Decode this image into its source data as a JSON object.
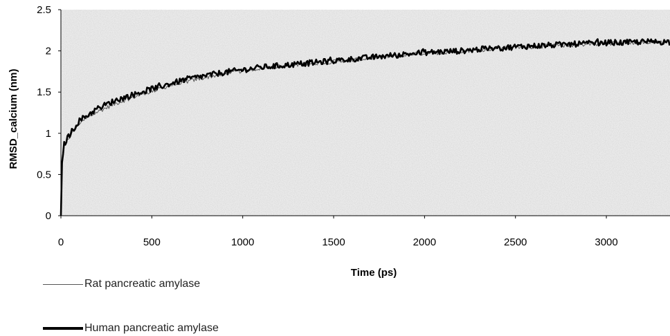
{
  "chart_data": {
    "type": "line",
    "xlabel": "Time (ps)",
    "ylabel": "RMSD_calcium (nm)",
    "xlim": [
      0,
      3350
    ],
    "ylim": [
      0,
      2.5
    ],
    "x_ticks": [
      "0",
      "500",
      "1000",
      "1500",
      "2000",
      "2500",
      "3000"
    ],
    "y_ticks": [
      "0",
      "0.5",
      "1",
      "1.5",
      "2",
      "2.5"
    ],
    "grid": false,
    "background": "noisy light-gray texture",
    "legend_position": "bottom-left",
    "series": [
      {
        "name": "Rat pancreatic amylase",
        "color": "#555555",
        "style": "thin",
        "points": [
          [
            0,
            0
          ],
          [
            5,
            0.55
          ],
          [
            15,
            0.82
          ],
          [
            40,
            0.93
          ],
          [
            100,
            1.12
          ],
          [
            200,
            1.26
          ],
          [
            300,
            1.36
          ],
          [
            400,
            1.44
          ],
          [
            500,
            1.51
          ],
          [
            600,
            1.58
          ],
          [
            700,
            1.63
          ],
          [
            800,
            1.68
          ],
          [
            900,
            1.72
          ],
          [
            1000,
            1.76
          ],
          [
            1100,
            1.79
          ],
          [
            1200,
            1.81
          ],
          [
            1300,
            1.83
          ],
          [
            1400,
            1.85
          ],
          [
            1500,
            1.87
          ],
          [
            1600,
            1.89
          ],
          [
            1700,
            1.91
          ],
          [
            1800,
            1.93
          ],
          [
            1900,
            1.95
          ],
          [
            2000,
            1.97
          ],
          [
            2100,
            1.98
          ],
          [
            2200,
            2.0
          ],
          [
            2300,
            2.01
          ],
          [
            2400,
            2.03
          ],
          [
            2500,
            2.04
          ],
          [
            2600,
            2.05
          ],
          [
            2700,
            2.06
          ],
          [
            2800,
            2.07
          ],
          [
            2900,
            2.08
          ],
          [
            3000,
            2.09
          ],
          [
            3100,
            2.1
          ],
          [
            3200,
            2.1
          ],
          [
            3350,
            2.1
          ]
        ]
      },
      {
        "name": "Human pancreatic amylase",
        "color": "#000000",
        "style": "thick",
        "points": [
          [
            0,
            0
          ],
          [
            5,
            0.62
          ],
          [
            15,
            0.85
          ],
          [
            40,
            0.96
          ],
          [
            100,
            1.15
          ],
          [
            200,
            1.3
          ],
          [
            300,
            1.4
          ],
          [
            400,
            1.47
          ],
          [
            500,
            1.54
          ],
          [
            600,
            1.6
          ],
          [
            700,
            1.66
          ],
          [
            800,
            1.7
          ],
          [
            900,
            1.74
          ],
          [
            1000,
            1.77
          ],
          [
            1100,
            1.8
          ],
          [
            1200,
            1.82
          ],
          [
            1300,
            1.84
          ],
          [
            1400,
            1.86
          ],
          [
            1500,
            1.88
          ],
          [
            1600,
            1.9
          ],
          [
            1700,
            1.92
          ],
          [
            1800,
            1.94
          ],
          [
            1900,
            1.96
          ],
          [
            2000,
            1.98
          ],
          [
            2100,
            1.99
          ],
          [
            2200,
            2.0
          ],
          [
            2300,
            2.02
          ],
          [
            2400,
            2.03
          ],
          [
            2500,
            2.05
          ],
          [
            2600,
            2.06
          ],
          [
            2700,
            2.07
          ],
          [
            2800,
            2.08
          ],
          [
            2900,
            2.09
          ],
          [
            3000,
            2.1
          ],
          [
            3100,
            2.1
          ],
          [
            3200,
            2.11
          ],
          [
            3350,
            2.11
          ]
        ]
      }
    ]
  },
  "legend": {
    "rat_label": "Rat pancreatic amylase",
    "human_label": "Human pancreatic amylase"
  }
}
